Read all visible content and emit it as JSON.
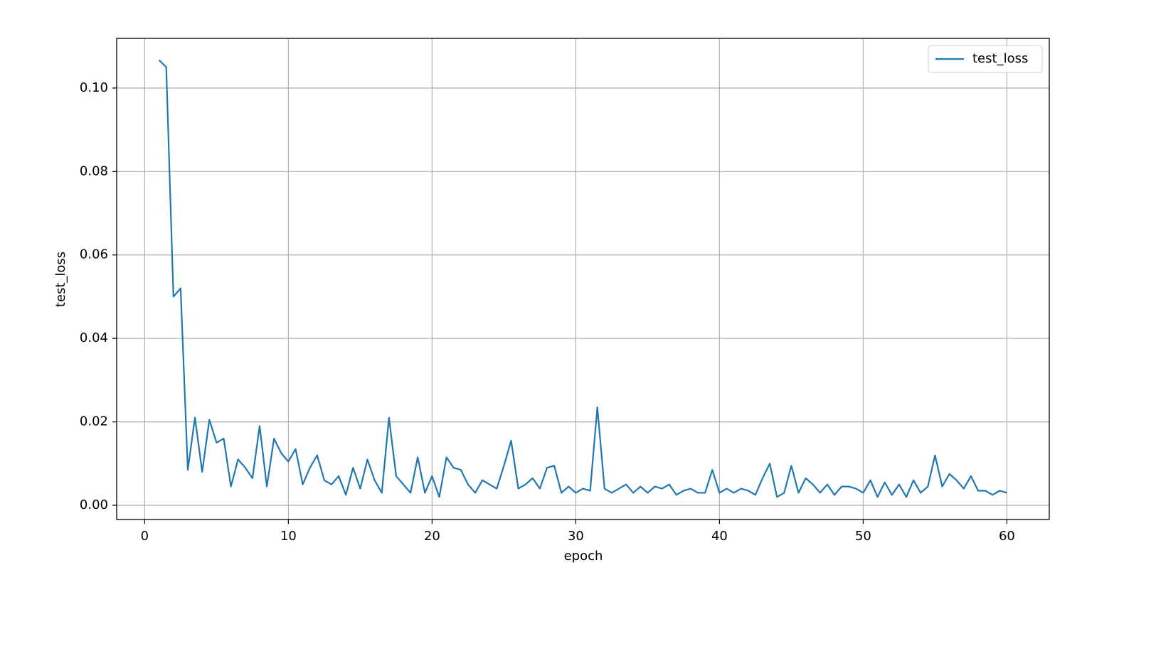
{
  "chart_data": {
    "type": "line",
    "xlabel": "epoch",
    "ylabel": "test_loss",
    "x": [
      1,
      1.5,
      2,
      2.5,
      3,
      3.5,
      4,
      4.5,
      5,
      5.5,
      6,
      6.5,
      7,
      7.5,
      8,
      8.5,
      9,
      9.5,
      10,
      10.5,
      11,
      11.5,
      12,
      12.5,
      13,
      13.5,
      14,
      14.5,
      15,
      15.5,
      16,
      16.5,
      17,
      17.5,
      18,
      18.5,
      19,
      19.5,
      20,
      20.5,
      21,
      21.5,
      22,
      22.5,
      23,
      23.5,
      24,
      24.5,
      25,
      25.5,
      26,
      26.5,
      27,
      27.5,
      28,
      28.5,
      29,
      29.5,
      30,
      30.5,
      31,
      31.5,
      32,
      32.5,
      33,
      33.5,
      34,
      34.5,
      35,
      35.5,
      36,
      36.5,
      37,
      37.5,
      38,
      38.5,
      39,
      39.5,
      40,
      40.5,
      41,
      41.5,
      42,
      42.5,
      43,
      43.5,
      44,
      44.5,
      45,
      45.5,
      46,
      46.5,
      47,
      47.5,
      48,
      48.5,
      49,
      49.5,
      50,
      50.5,
      51,
      51.5,
      52,
      52.5,
      53,
      53.5,
      54,
      54.5,
      55,
      55.5,
      56,
      56.5,
      57,
      57.5,
      58,
      58.5,
      59,
      59.5,
      60
    ],
    "series": [
      {
        "name": "test_loss",
        "color": "#1f77b4",
        "values": [
          0.1067,
          0.105,
          0.05,
          0.052,
          0.0085,
          0.021,
          0.008,
          0.0205,
          0.015,
          0.016,
          0.0045,
          0.011,
          0.009,
          0.0065,
          0.019,
          0.0045,
          0.016,
          0.0125,
          0.0105,
          0.0135,
          0.005,
          0.009,
          0.012,
          0.006,
          0.005,
          0.007,
          0.0025,
          0.009,
          0.004,
          0.011,
          0.006,
          0.003,
          0.021,
          0.007,
          0.005,
          0.003,
          0.0115,
          0.003,
          0.007,
          0.002,
          0.0115,
          0.009,
          0.0085,
          0.005,
          0.003,
          0.006,
          0.005,
          0.004,
          0.0095,
          0.0155,
          0.004,
          0.005,
          0.0065,
          0.004,
          0.009,
          0.0095,
          0.003,
          0.0045,
          0.003,
          0.004,
          0.0035,
          0.0235,
          0.004,
          0.003,
          0.004,
          0.005,
          0.003,
          0.0045,
          0.003,
          0.0045,
          0.004,
          0.005,
          0.0025,
          0.0035,
          0.004,
          0.003,
          0.003,
          0.0085,
          0.003,
          0.004,
          0.003,
          0.004,
          0.0035,
          0.0025,
          0.0065,
          0.01,
          0.002,
          0.003,
          0.0095,
          0.003,
          0.0065,
          0.005,
          0.003,
          0.005,
          0.0025,
          0.0045,
          0.0045,
          0.004,
          0.003,
          0.006,
          0.002,
          0.0055,
          0.0025,
          0.005,
          0.002,
          0.006,
          0.003,
          0.0045,
          0.012,
          0.0045,
          0.0075,
          0.006,
          0.004,
          0.007,
          0.0035,
          0.0035,
          0.0025,
          0.0035,
          0.003
        ]
      }
    ],
    "xlim": [
      -1.95,
      62.95
    ],
    "xticks": [
      0,
      10,
      20,
      30,
      40,
      50,
      60
    ],
    "ylim": [
      -0.0034,
      0.1119
    ],
    "yticks": [
      {
        "value": 0,
        "label": "0.00"
      },
      {
        "value": 0.02,
        "label": "0.02"
      },
      {
        "value": 0.04,
        "label": "0.04"
      },
      {
        "value": 0.06,
        "label": "0.06"
      },
      {
        "value": 0.08,
        "label": "0.08"
      },
      {
        "value": 0.1,
        "label": "0.10"
      }
    ],
    "grid": true,
    "legend": "upper-right"
  }
}
